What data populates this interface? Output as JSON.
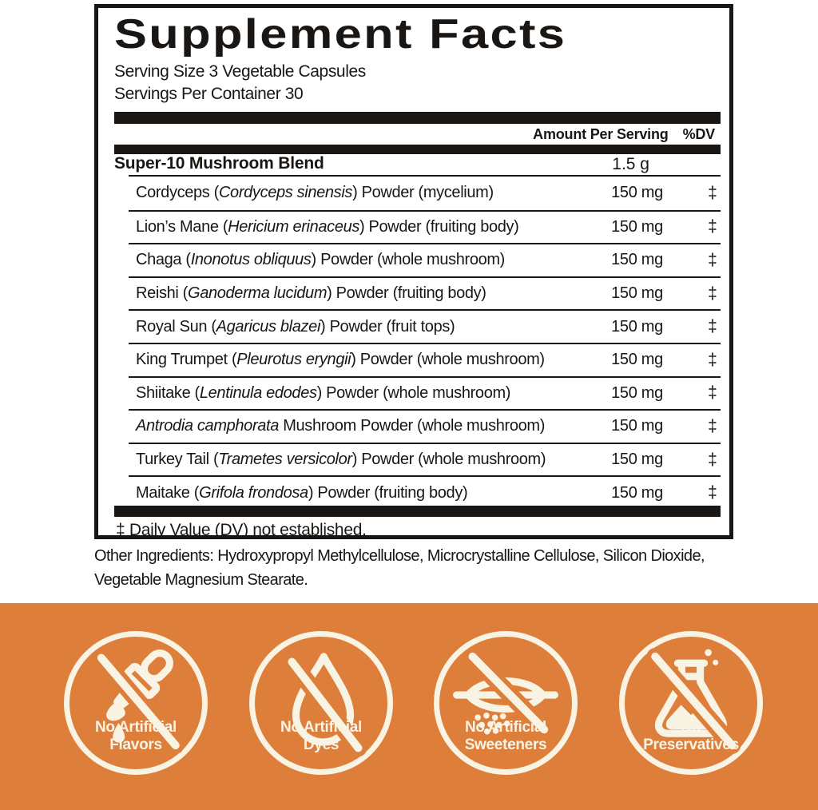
{
  "panel": {
    "title": "Supplement Facts",
    "serving_size": "Serving Size 3 Vegetable Capsules",
    "servings_per_container": "Servings Per Container 30",
    "columns": {
      "amount": "Amount Per Serving",
      "dv": "%DV"
    },
    "blend": {
      "name": "Super-10 Mushroom Blend",
      "amount": "1.5 g"
    },
    "rows": [
      {
        "pre": "Cordyceps (",
        "italic": "Cordyceps sinensis",
        "post": ") Powder (mycelium)",
        "amount": "150 mg",
        "dv": "‡"
      },
      {
        "pre": "Lion’s Mane (",
        "italic": "Hericium erinaceus",
        "post": ") Powder (fruiting body)",
        "amount": "150 mg",
        "dv": "‡"
      },
      {
        "pre": "Chaga (",
        "italic": "Inonotus obliquus",
        "post": ") Powder (whole mushroom)",
        "amount": "150 mg",
        "dv": "‡"
      },
      {
        "pre": "Reishi (",
        "italic": "Ganoderma lucidum",
        "post": ") Powder (fruiting body)",
        "amount": "150 mg",
        "dv": "‡"
      },
      {
        "pre": "Royal Sun (",
        "italic": "Agaricus blazei",
        "post": ") Powder (fruit tops)",
        "amount": "150 mg",
        "dv": "‡"
      },
      {
        "pre": "King Trumpet (",
        "italic": "Pleurotus eryngii",
        "post": ") Powder (whole mushroom)",
        "amount": "150 mg",
        "dv": "‡"
      },
      {
        "pre": "Shiitake (",
        "italic": "Lentinula edodes",
        "post": ") Powder (whole mushroom)",
        "amount": "150 mg",
        "dv": "‡"
      },
      {
        "pre": "",
        "italic": "Antrodia camphorata",
        "post": " Mushroom Powder (whole mushroom)",
        "amount": "150 mg",
        "dv": "‡"
      },
      {
        "pre": "Turkey Tail (",
        "italic": "Trametes versicolor",
        "post": ") Powder (whole mushroom)",
        "amount": "150 mg",
        "dv": "‡"
      },
      {
        "pre": "Maitake (",
        "italic": "Grifola frondosa",
        "post": ") Powder (fruiting body)",
        "amount": "150 mg",
        "dv": "‡"
      }
    ],
    "footnote": "‡ Daily Value (DV) not established."
  },
  "other_ingredients": "Other Ingredients: Hydroxypropyl Methylcellulose, Microcrystalline Cellulose, Silicon Dioxide, Vegetable Magnesium Stearate.",
  "badges": [
    {
      "icon": "no-artificial-flavors-icon",
      "line1": "No Artificial",
      "line2": "Flavors"
    },
    {
      "icon": "no-artificial-dyes-icon",
      "line1": "No Artificial",
      "line2": "Dyes"
    },
    {
      "icon": "no-artificial-sweeteners-icon",
      "line1": "No Artificial",
      "line2": "Sweeteners"
    },
    {
      "icon": "no-preservatives-icon",
      "line1": "No",
      "line2": "Preservatives"
    }
  ],
  "colors": {
    "band_orange": "#DD7F3B",
    "cream": "#F9F3E4",
    "ink": "#191613"
  }
}
